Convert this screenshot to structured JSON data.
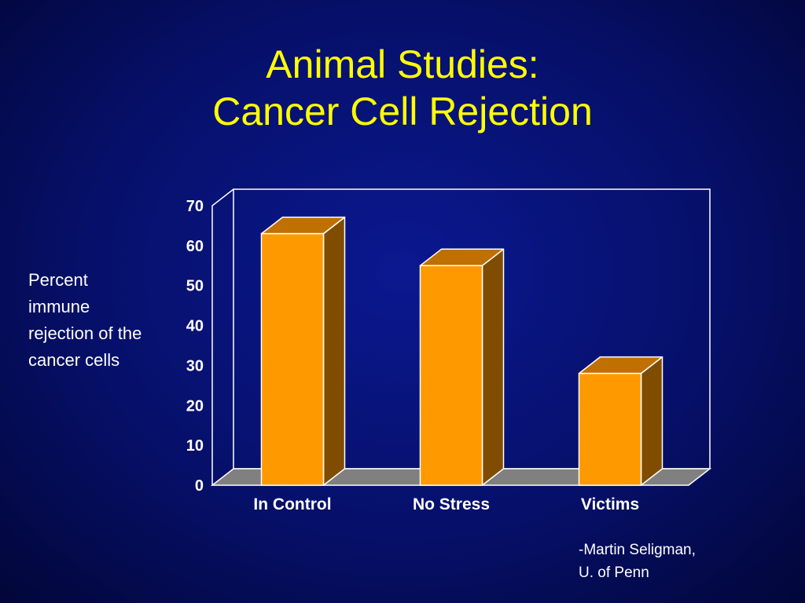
{
  "slide": {
    "title_line1": "Animal Studies:",
    "title_line2": "Cancer Cell Rejection",
    "side_label": "Percent immune rejection of the cancer cells",
    "credit_line1": "-Martin Seligman,",
    "credit_line2": "U. of Penn"
  },
  "colors": {
    "background": "#06106a",
    "title": "#ffff00",
    "bar_front": "#ff9900",
    "bar_side": "#804d00",
    "bar_top": "#c07000",
    "floor": "#808080",
    "text": "#ffffff"
  },
  "chart_data": {
    "type": "bar",
    "categories": [
      "In Control",
      "No Stress",
      "Victims"
    ],
    "values": [
      63,
      55,
      28
    ],
    "title": "",
    "xlabel": "",
    "ylabel": "Percent immune rejection of the cancer cells",
    "ylim": [
      0,
      70
    ],
    "yticks": [
      0,
      10,
      20,
      30,
      40,
      50,
      60,
      70
    ],
    "grid": false,
    "legend": "none",
    "style": "3d"
  }
}
